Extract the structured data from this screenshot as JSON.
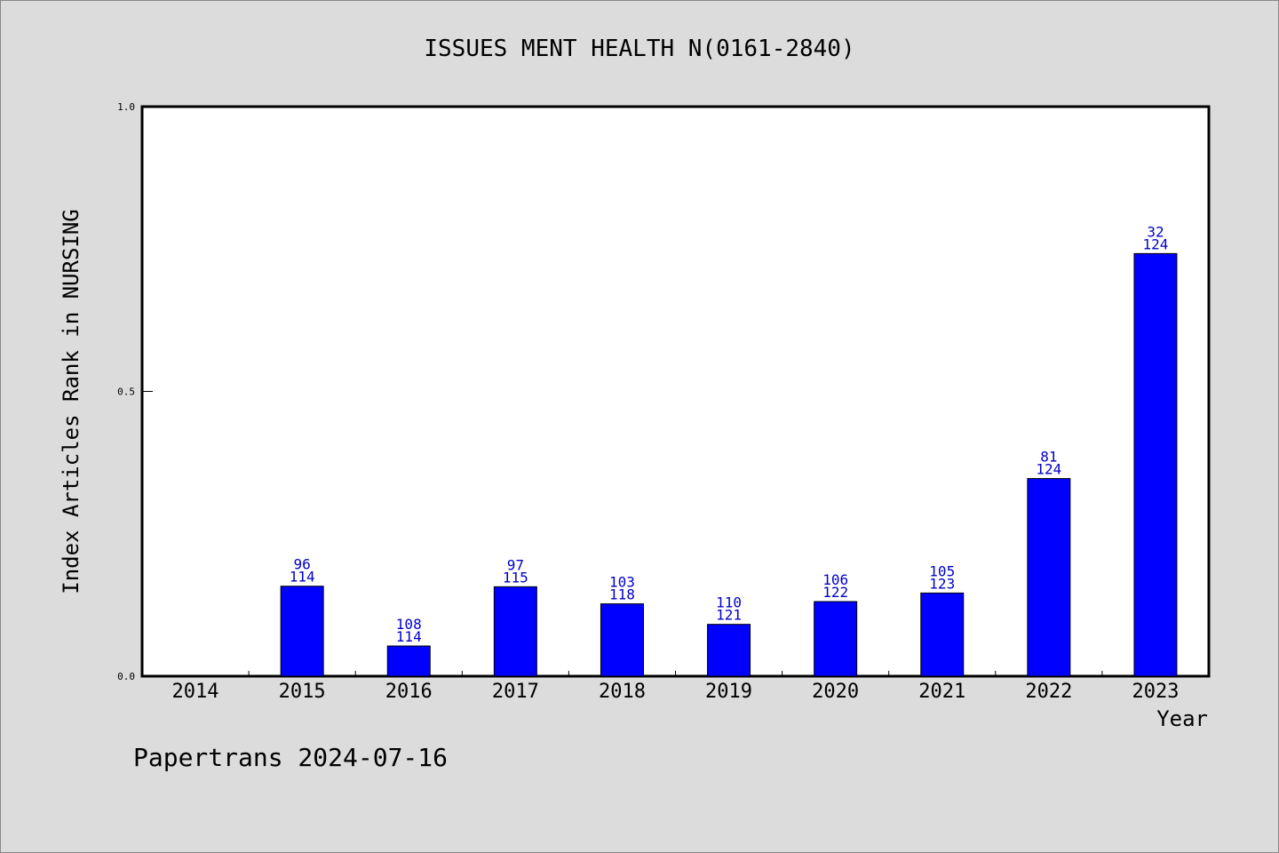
{
  "chart_data": {
    "type": "bar",
    "title": "ISSUES MENT HEALTH N(0161-2840)",
    "xlabel": "Year",
    "ylabel": "Index Articles Rank in NURSING",
    "ylim": [
      0,
      1
    ],
    "yticks": [
      "0.0",
      "0.5",
      "1.0"
    ],
    "categories": [
      "2014",
      "2015",
      "2016",
      "2017",
      "2018",
      "2019",
      "2020",
      "2021",
      "2022",
      "2023"
    ],
    "values": [
      0,
      0.158,
      0.053,
      0.157,
      0.127,
      0.091,
      0.131,
      0.146,
      0.347,
      0.742
    ],
    "ranks": [
      null,
      "96",
      "108",
      "97",
      "103",
      "110",
      "106",
      "105",
      "81",
      "32"
    ],
    "totals": [
      null,
      "114",
      "114",
      "115",
      "118",
      "121",
      "122",
      "123",
      "124",
      "124"
    ],
    "bar_color": "#0000ff",
    "label_color": "#0000cc",
    "grid": false
  },
  "footer": "Papertrans 2024-07-16"
}
